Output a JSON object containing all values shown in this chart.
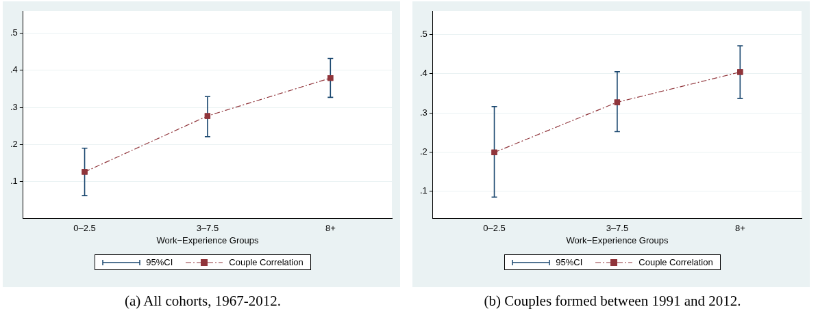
{
  "chart_data": [
    {
      "type": "line",
      "title": "(a) All cohorts, 1967-2012.",
      "xlabel": "Work−Experience Groups",
      "annotations": [
        "95%CI"
      ],
      "categories": [
        "0–2.5",
        "3–7.5",
        "8+"
      ],
      "series": [
        {
          "name": "Couple Correlation",
          "color": "#90353b",
          "values": [
            0.126,
            0.277,
            0.379
          ],
          "errors": [
            [
              0.062,
              0.19
            ],
            [
              0.221,
              0.329
            ],
            [
              0.327,
              0.432
            ]
          ]
        }
      ],
      "ylim": [
        0,
        0.56
      ],
      "yticks": [
        {
          "value": 0.1,
          "label": ".1"
        },
        {
          "value": 0.2,
          "label": ".2"
        },
        {
          "value": 0.3,
          "label": ".3"
        },
        {
          "value": 0.4,
          "label": ".4"
        },
        {
          "value": 0.5,
          "label": ".5"
        }
      ],
      "grid": "y",
      "legend": "bottom",
      "marker": "square",
      "line_style": "dashed"
    },
    {
      "type": "line",
      "title": "(b) Couples formed between 1991 and 2012.",
      "xlabel": "Work−Experience Groups",
      "annotations": [
        "95%CI"
      ],
      "categories": [
        "0–2.5",
        "3–7.5",
        "8+"
      ],
      "series": [
        {
          "name": "Couple Correlation",
          "color": "#90353b",
          "values": [
            0.199,
            0.327,
            0.404
          ],
          "errors": [
            [
              0.085,
              0.316
            ],
            [
              0.252,
              0.405
            ],
            [
              0.337,
              0.471
            ]
          ]
        }
      ],
      "ylim": [
        0.03,
        0.56
      ],
      "yticks": [
        {
          "value": 0.1,
          "label": ".1"
        },
        {
          "value": 0.2,
          "label": ".2"
        },
        {
          "value": 0.3,
          "label": ".3"
        },
        {
          "value": 0.4,
          "label": ".4"
        },
        {
          "value": 0.5,
          "label": ".5"
        }
      ],
      "grid": "y",
      "legend": "bottom",
      "marker": "square",
      "line_style": "dashed"
    }
  ]
}
